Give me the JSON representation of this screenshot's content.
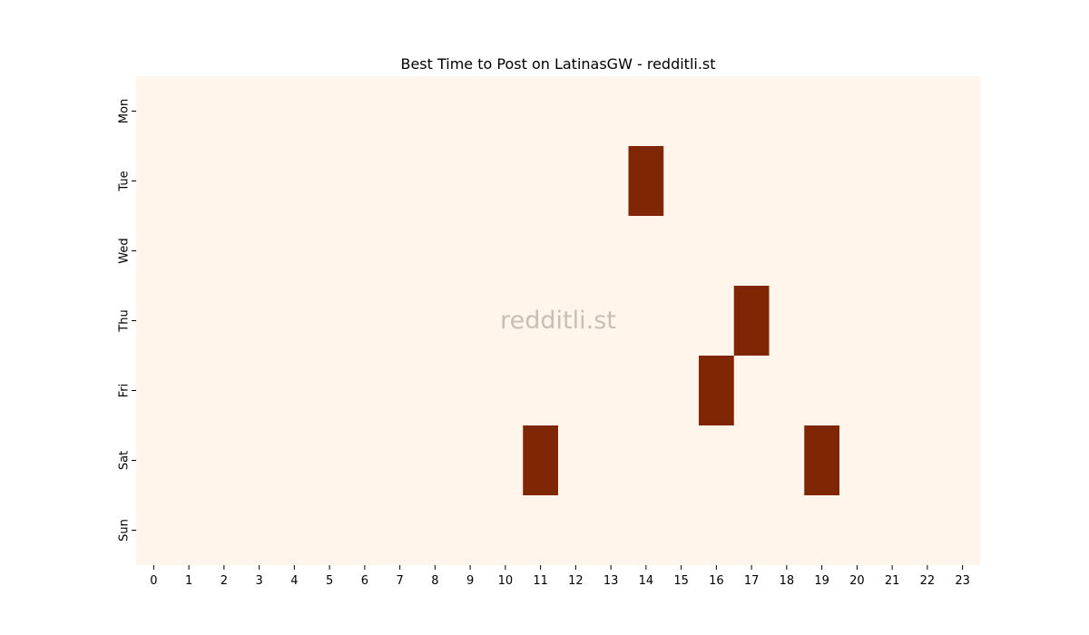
{
  "chart_data": {
    "type": "heatmap",
    "title": "Best Time to Post on LatinasGW - redditli.st",
    "xlabel": "",
    "ylabel": "",
    "x_categories": [
      "0",
      "1",
      "2",
      "3",
      "4",
      "5",
      "6",
      "7",
      "8",
      "9",
      "10",
      "11",
      "12",
      "13",
      "14",
      "15",
      "16",
      "17",
      "18",
      "19",
      "20",
      "21",
      "22",
      "23"
    ],
    "y_categories": [
      "Mon",
      "Tue",
      "Wed",
      "Thu",
      "Fri",
      "Sat",
      "Sun"
    ],
    "values": [
      [
        0,
        0,
        0,
        0,
        0,
        0,
        0,
        0,
        0,
        0,
        0,
        0,
        0,
        0,
        0,
        0,
        0,
        0,
        0,
        0,
        0,
        0,
        0,
        0
      ],
      [
        0,
        0,
        0,
        0,
        0,
        0,
        0,
        0,
        0,
        0,
        0,
        0,
        0,
        0,
        1,
        0,
        0,
        0,
        0,
        0,
        0,
        0,
        0,
        0
      ],
      [
        0,
        0,
        0,
        0,
        0,
        0,
        0,
        0,
        0,
        0,
        0,
        0,
        0,
        0,
        0,
        0,
        0,
        0,
        0,
        0,
        0,
        0,
        0,
        0
      ],
      [
        0,
        0,
        0,
        0,
        0,
        0,
        0,
        0,
        0,
        0,
        0,
        0,
        0,
        0,
        0,
        0,
        0,
        1,
        0,
        0,
        0,
        0,
        0,
        0
      ],
      [
        0,
        0,
        0,
        0,
        0,
        0,
        0,
        0,
        0,
        0,
        0,
        0,
        0,
        0,
        0,
        0,
        1,
        0,
        0,
        0,
        0,
        0,
        0,
        0
      ],
      [
        0,
        0,
        0,
        0,
        0,
        0,
        0,
        0,
        0,
        0,
        0,
        1,
        0,
        0,
        0,
        0,
        0,
        0,
        0,
        1,
        0,
        0,
        0,
        0
      ],
      [
        0,
        0,
        0,
        0,
        0,
        0,
        0,
        0,
        0,
        0,
        0,
        0,
        0,
        0,
        0,
        0,
        0,
        0,
        0,
        0,
        0,
        0,
        0,
        0
      ]
    ],
    "colorscale": {
      "low": "#fff5eb",
      "high": "#7f2704"
    },
    "watermark": "redditli.st",
    "grid": false,
    "legend": "none"
  }
}
